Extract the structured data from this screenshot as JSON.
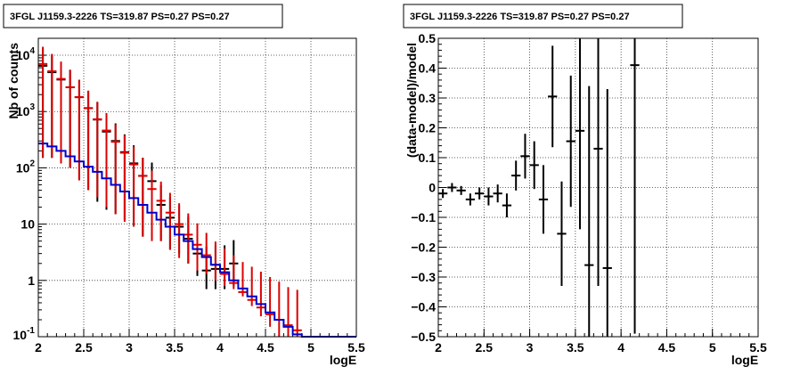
{
  "chart_data": [
    {
      "type": "line",
      "title": "3FGL J1159.3-2226 TS=319.87 PS=0.27 PS=0.27",
      "xlabel": "logE",
      "ylabel": "Nb of counts",
      "xlim": [
        2,
        5.5
      ],
      "ylim": [
        0.1,
        20000
      ],
      "yscale": "log",
      "grid": true,
      "x_ticks": [
        "2",
        "2.5",
        "3",
        "3.5",
        "4",
        "4.5",
        "5",
        "5.5"
      ],
      "y_ticks": [
        "10^-1",
        "1",
        "10",
        "10^2",
        "10^3",
        "10^4"
      ],
      "colors": {
        "data": "#000000",
        "model_total": "#dd0000",
        "model_component": "#0000cc"
      },
      "series": [
        {
          "kind": "points",
          "color": "#000000",
          "x": [
            2.05,
            2.15,
            2.25,
            2.35,
            2.45,
            2.55,
            2.65,
            2.75,
            2.85,
            2.95,
            3.05,
            3.15,
            3.25,
            3.35,
            3.45,
            3.55,
            3.65,
            3.75,
            3.85,
            3.95,
            4.05,
            4.15
          ],
          "y": [
            6500,
            5000,
            3700,
            2700,
            1800,
            1150,
            720,
            440,
            300,
            190,
            120,
            72,
            58,
            22,
            13,
            9,
            5.5,
            3,
            1.5,
            1.6,
            1.6,
            2
          ],
          "yerr_low": [
            6350,
            4850,
            3580,
            2600,
            1740,
            1110,
            695,
            422,
            285,
            178,
            111,
            66,
            51,
            17,
            9.5,
            6,
            3.5,
            1.8,
            0.8,
            0.9,
            0.9,
            1.2
          ],
          "yerr_high": [
            6650,
            5150,
            3820,
            2800,
            1860,
            1190,
            745,
            458,
            317,
            203,
            131,
            79,
            66,
            27,
            17,
            12.5,
            8,
            4.5,
            2.5,
            2.6,
            2.6,
            3.2
          ]
        },
        {
          "kind": "points",
          "color": "#dd0000",
          "x": [
            2.05,
            2.15,
            2.25,
            2.35,
            2.45,
            2.55,
            2.65,
            2.75,
            2.85,
            2.95,
            3.05,
            3.15,
            3.25,
            3.35,
            3.45,
            3.55,
            3.65,
            3.75,
            3.85,
            3.95,
            4.05,
            4.15,
            4.25,
            4.35,
            4.45,
            4.55,
            4.65,
            4.75,
            4.85
          ],
          "y": [
            7000,
            5200,
            3800,
            2700,
            1800,
            1150,
            730,
            460,
            290,
            185,
            115,
            72,
            42,
            26,
            16,
            10,
            6.5,
            4.3,
            2.8,
            1.9,
            1.3,
            0.9,
            0.62,
            0.45,
            0.33,
            0.25,
            0.2,
            0.16,
            0.13
          ],
          "yerr_low": [
            6850,
            5050,
            3680,
            2600,
            1740,
            1110,
            700,
            440,
            275,
            174,
            106,
            66,
            37,
            21,
            12.5,
            7.5,
            4.5,
            2.8,
            1.5,
            0.9,
            0.5,
            0.2,
            0.1,
            0.1,
            0.1,
            0.1,
            0.1,
            0.1,
            0.1
          ],
          "yerr_high": [
            7150,
            5350,
            3920,
            2800,
            1860,
            1190,
            760,
            480,
            305,
            196,
            124,
            78,
            47,
            31,
            20,
            13.5,
            9,
            6,
            4.2,
            3,
            2.4,
            1.9,
            1.5,
            1.3,
            1.1,
            0.9,
            0.75,
            0.6,
            0.55
          ]
        },
        {
          "kind": "step",
          "color": "#0000cc",
          "edges": [
            2.0,
            2.1,
            2.2,
            2.3,
            2.4,
            2.5,
            2.6,
            2.7,
            2.8,
            2.9,
            3.0,
            3.1,
            3.2,
            3.3,
            3.4,
            3.5,
            3.6,
            3.7,
            3.8,
            3.9,
            4.0,
            4.1,
            4.2,
            4.3,
            4.4,
            4.5,
            4.6,
            4.7,
            4.8,
            4.9,
            5.0,
            5.1,
            5.2,
            5.3,
            5.4,
            5.5
          ],
          "values": [
            270,
            240,
            200,
            160,
            130,
            105,
            85,
            65,
            50,
            38,
            29,
            22,
            16,
            12,
            9,
            6.5,
            5,
            3.6,
            2.6,
            1.9,
            1.4,
            1.0,
            0.72,
            0.52,
            0.38,
            0.27,
            0.2,
            0.15,
            0.11,
            0.1,
            0.1,
            0.1,
            0.1,
            0.1,
            0.1
          ]
        }
      ]
    },
    {
      "type": "scatter",
      "title": "3FGL J1159.3-2226 TS=319.87 PS=0.27 PS=0.27",
      "xlabel": "logE",
      "ylabel": "(data-model)/model",
      "xlim": [
        2,
        5.5
      ],
      "ylim": [
        -0.5,
        0.5
      ],
      "grid": true,
      "x_ticks": [
        "2",
        "2.5",
        "3",
        "3.5",
        "4",
        "4.5",
        "5",
        "5.5"
      ],
      "y_ticks": [
        "−0.5",
        "−0.4",
        "−0.3",
        "−0.2",
        "−0.1",
        "0",
        "0.1",
        "0.2",
        "0.3",
        "0.4",
        "0.5"
      ],
      "series": [
        {
          "color": "#000000",
          "x": [
            2.05,
            2.15,
            2.25,
            2.35,
            2.45,
            2.55,
            2.65,
            2.75,
            2.85,
            2.95,
            3.05,
            3.15,
            3.25,
            3.35,
            3.45,
            3.55,
            3.65,
            3.75,
            3.85,
            4.15
          ],
          "y": [
            -0.02,
            0.0,
            -0.01,
            -0.04,
            -0.02,
            -0.03,
            -0.02,
            -0.06,
            0.04,
            0.105,
            0.075,
            -0.04,
            0.305,
            -0.155,
            0.155,
            0.19,
            -0.26,
            0.13,
            -0.27,
            0.41
          ],
          "err": [
            0.015,
            0.015,
            0.015,
            0.02,
            0.02,
            0.03,
            0.03,
            0.04,
            0.05,
            0.075,
            0.08,
            0.115,
            0.17,
            0.175,
            0.22,
            0.33,
            0.6,
            0.46,
            0.6,
            0.9
          ]
        }
      ]
    }
  ]
}
